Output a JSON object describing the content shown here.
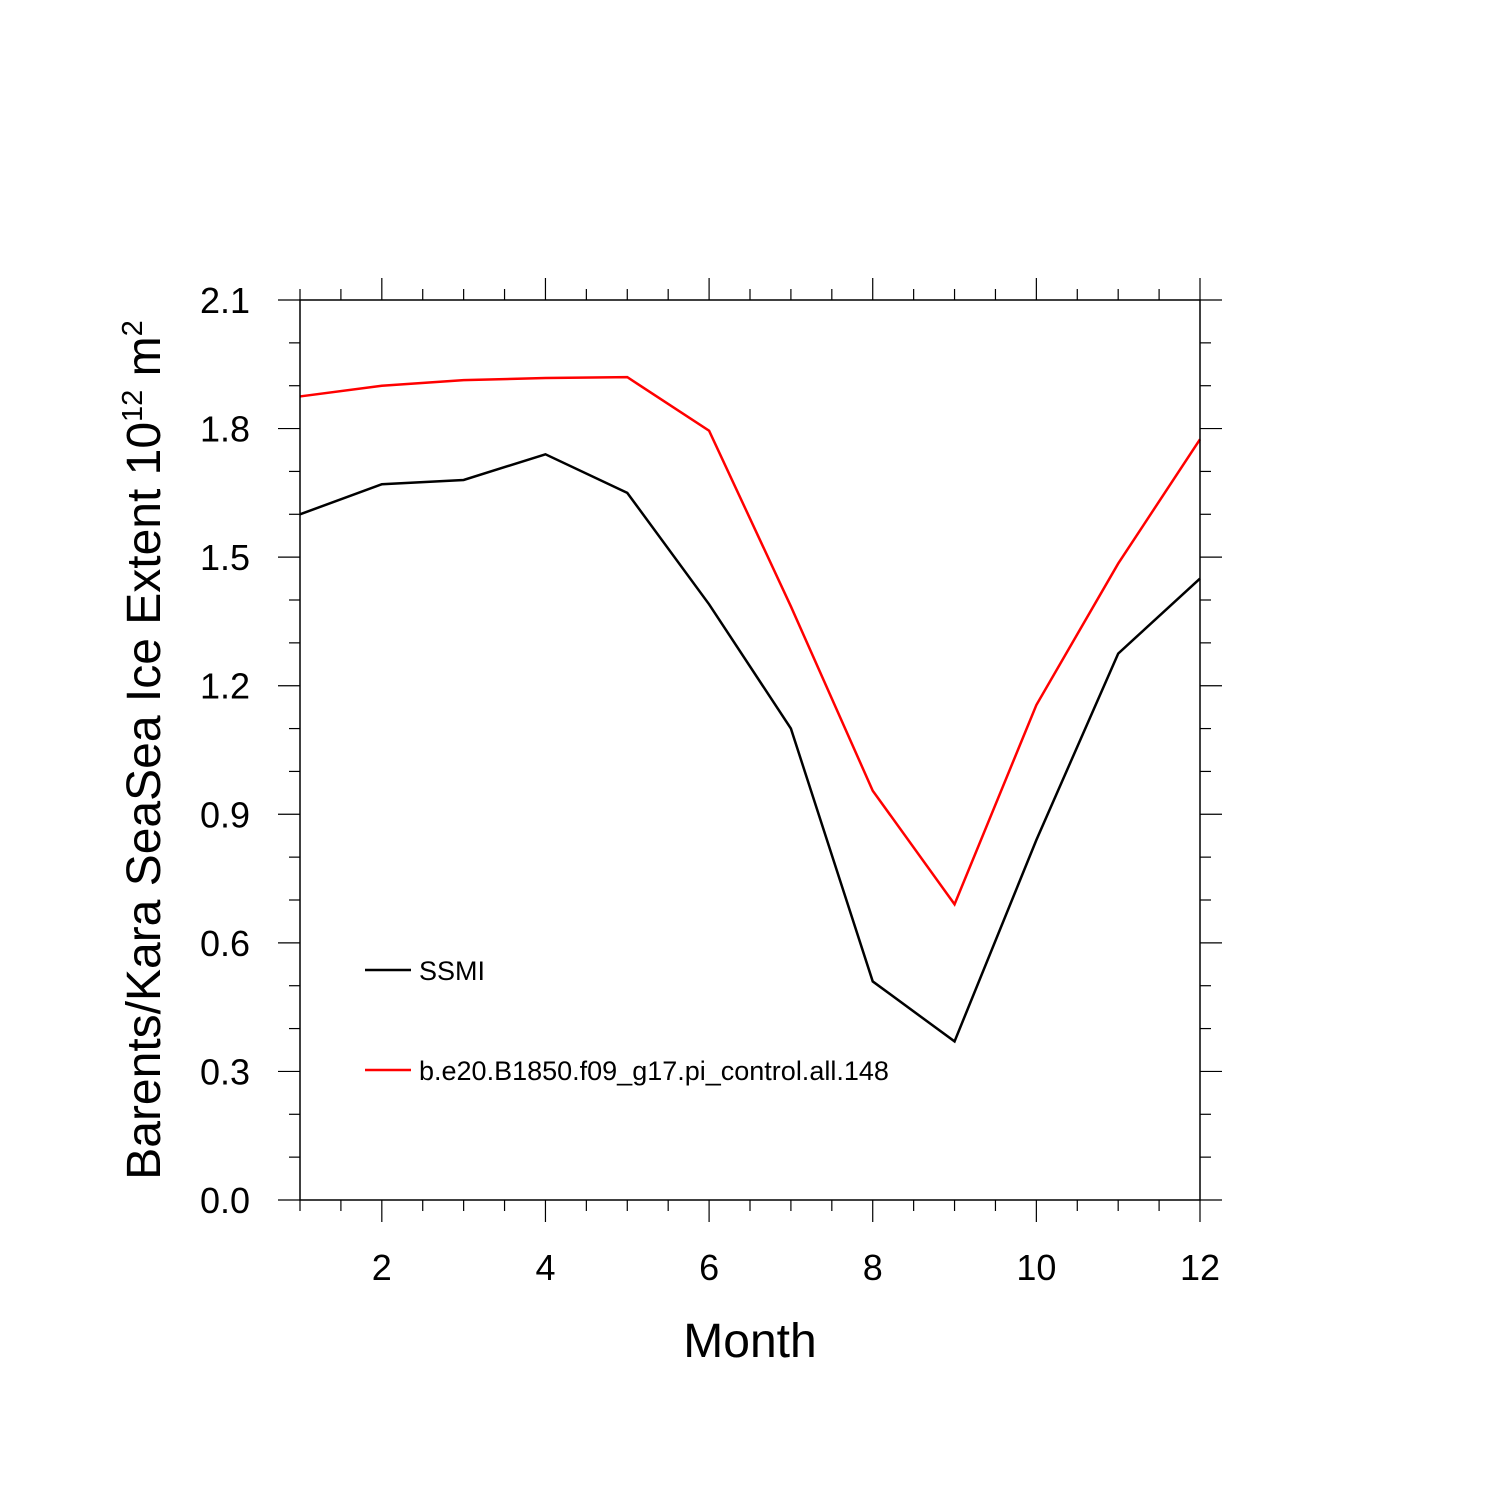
{
  "chart_data": {
    "type": "line",
    "xlabel": "Month",
    "ylabel": {
      "prefix": "Barents/Kara SeaSea Ice Extent 10",
      "exponent1": "12",
      "unit": " m",
      "exponent2": "2"
    },
    "xlim": [
      1,
      12
    ],
    "ylim": [
      0.0,
      2.1
    ],
    "x_ticks": [
      2,
      4,
      6,
      8,
      10,
      12
    ],
    "x_tick_labels": [
      "2",
      "4",
      "6",
      "8",
      "10",
      "12"
    ],
    "x_minor_step": 0.5,
    "y_ticks": [
      0.0,
      0.3,
      0.6,
      0.9,
      1.2,
      1.5,
      1.8,
      2.1
    ],
    "y_tick_labels": [
      "0.0",
      "0.3",
      "0.6",
      "0.9",
      "1.2",
      "1.5",
      "1.8",
      "2.1"
    ],
    "y_minor_step": 0.1,
    "grid": false,
    "legend_position": "inside-bottom-left",
    "x": [
      1,
      2,
      3,
      4,
      5,
      6,
      7,
      8,
      9,
      10,
      11,
      12
    ],
    "series": [
      {
        "name": "SSMI",
        "color": "#000000",
        "values": [
          1.6,
          1.67,
          1.68,
          1.74,
          1.65,
          1.39,
          1.1,
          0.51,
          0.37,
          0.84,
          1.275,
          1.45
        ]
      },
      {
        "name": "b.e20.B1850.f09_g17.pi_control.all.148",
        "color": "#ff0000",
        "values": [
          1.875,
          1.9,
          1.913,
          1.918,
          1.92,
          1.795,
          1.385,
          0.955,
          0.69,
          1.155,
          1.485,
          1.775
        ]
      }
    ]
  }
}
